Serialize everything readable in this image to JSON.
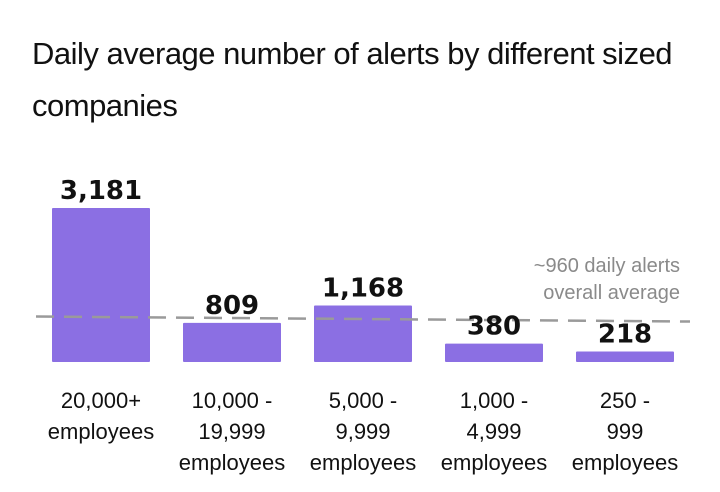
{
  "chart_data": {
    "type": "bar",
    "title": "Daily average number of alerts by different sized companies",
    "xlabel": "",
    "ylabel": "",
    "categories": [
      [
        "20,000+",
        "employees"
      ],
      [
        "10,000 -",
        "19,999",
        "employees"
      ],
      [
        "5,000 -",
        "9,999",
        "employees"
      ],
      [
        "1,000 -",
        "4,999",
        "employees"
      ],
      [
        "250 -",
        "999",
        "employees"
      ]
    ],
    "values": [
      3181,
      809,
      1168,
      380,
      218
    ],
    "value_labels": [
      "3,181",
      "809",
      "1,168",
      "380",
      "218"
    ],
    "ylim": [
      0,
      3181
    ],
    "grid": false,
    "bar_color": "#8b6fe3",
    "reference_line": {
      "value": 960,
      "style": "dashed",
      "color": "#9a9a9a",
      "label": [
        "~960 daily alerts",
        "overall average"
      ]
    }
  }
}
